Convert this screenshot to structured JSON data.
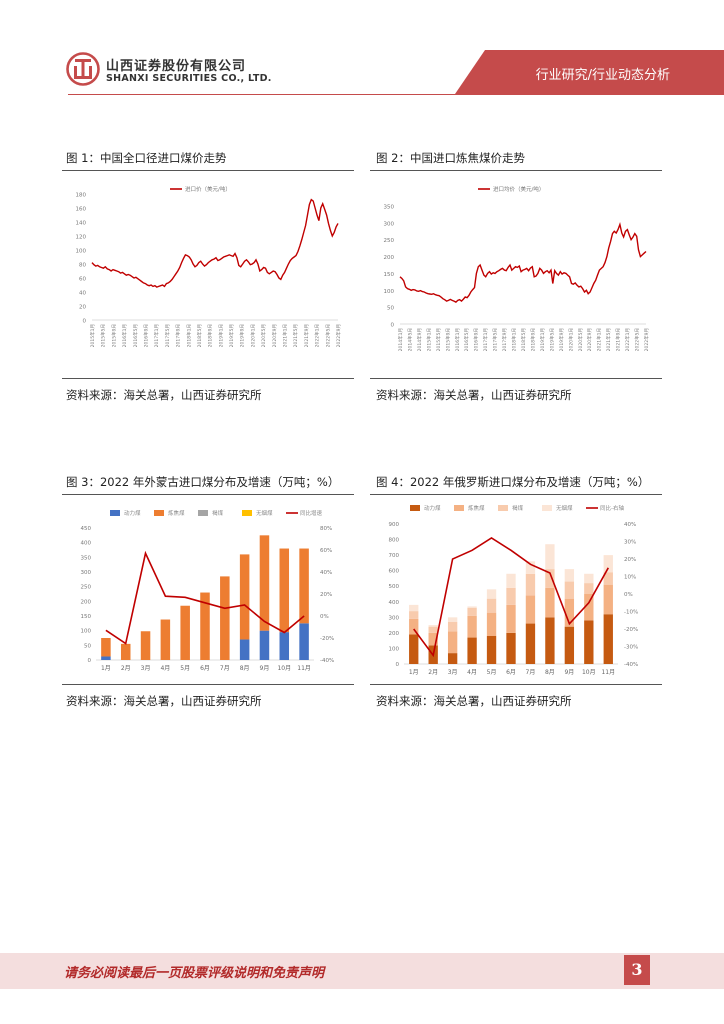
{
  "header": {
    "company_cn": "山西证券股份有限公司",
    "company_en": "SHANXI SECURITIES CO., LTD.",
    "section": "行业研究/行业动态分析",
    "brand_color": "#c54b4b"
  },
  "figures": [
    {
      "title": "图 1：中国全口径进口煤价走势",
      "source": "资料来源：海关总署，山西证券研究所"
    },
    {
      "title": "图 2：中国进口炼焦煤价走势",
      "source": "资料来源：海关总署，山西证券研究所"
    },
    {
      "title": "图 3：2022 年外蒙古进口煤分布及增速（万吨；%）",
      "source": "资料来源：海关总署，山西证券研究所"
    },
    {
      "title": "图 4：2022 年俄罗斯进口煤分布及增速（万吨；%）",
      "source": "资料来源：海关总署，山西证券研究所"
    }
  ],
  "chart_data": [
    {
      "type": "line",
      "x_start": "2015年1月",
      "x_end": "2022年9月",
      "x_ticks": [
        "2015年1月",
        "2015年5月",
        "2015年9月",
        "2016年1月",
        "2016年5月",
        "2016年9月",
        "2017年1月",
        "2017年5月",
        "2017年9月",
        "2018年1月",
        "2018年5月",
        "2018年9月",
        "2019年1月",
        "2019年5月",
        "2019年9月",
        "2020年1月",
        "2020年5月",
        "2020年9月",
        "2021年1月",
        "2021年5月",
        "2021年9月",
        "2022年1月",
        "2022年5月",
        "2022年9月"
      ],
      "series": [
        {
          "name": "进口价（美元/吨）",
          "color": "#c00000",
          "values": [
            82,
            79,
            77,
            78,
            76,
            75,
            74,
            76,
            73,
            72,
            70,
            72,
            71,
            70,
            69,
            67,
            68,
            66,
            64,
            65,
            64,
            62,
            60,
            61,
            59,
            57,
            55,
            53,
            52,
            50,
            49,
            50,
            48,
            49,
            47,
            48,
            49,
            50,
            48,
            52,
            53,
            55,
            58,
            62,
            66,
            70,
            75,
            82,
            88,
            93,
            92,
            90,
            86,
            80,
            76,
            78,
            82,
            84,
            80,
            77,
            79,
            82,
            84,
            86,
            87,
            89,
            85,
            86,
            88,
            90,
            91,
            92,
            93,
            92,
            91,
            95,
            89,
            78,
            76,
            80,
            84,
            86,
            83,
            79,
            80,
            82,
            86,
            80,
            70,
            72,
            75,
            74,
            68,
            66,
            68,
            70,
            69,
            65,
            60,
            58,
            64,
            68,
            74,
            80,
            85,
            88,
            90,
            92,
            98,
            106,
            115,
            125,
            135,
            150,
            165,
            172,
            170,
            160,
            150,
            142,
            160,
            166,
            158,
            150,
            138,
            128,
            120,
            125,
            133,
            138
          ]
        }
      ],
      "ylim": [
        0,
        180
      ],
      "yticks": [
        0,
        20,
        40,
        60,
        80,
        100,
        120,
        140,
        160,
        180
      ]
    },
    {
      "type": "line",
      "x_start": "2014年1月",
      "x_end": "2022年9月",
      "x_ticks": [
        "2014年1月",
        "2014年5月",
        "2014年9月",
        "2015年1月",
        "2015年5月",
        "2015年9月",
        "2016年1月",
        "2016年5月",
        "2016年9月",
        "2017年1月",
        "2017年5月",
        "2017年9月",
        "2018年1月",
        "2018年5月",
        "2018年9月",
        "2019年1月",
        "2019年5月",
        "2019年9月",
        "2020年1月",
        "2020年5月",
        "2020年9月",
        "2021年1月",
        "2021年5月",
        "2021年9月",
        "2022年1月",
        "2022年5月",
        "2022年9月"
      ],
      "series": [
        {
          "name": "进口均价（美元/吨）",
          "color": "#c00000",
          "values": [
            140,
            135,
            128,
            110,
            105,
            103,
            100,
            102,
            101,
            98,
            97,
            99,
            96,
            95,
            92,
            90,
            89,
            88,
            90,
            87,
            85,
            84,
            80,
            75,
            72,
            68,
            70,
            73,
            70,
            68,
            65,
            70,
            72,
            68,
            74,
            80,
            78,
            85,
            95,
            102,
            108,
            150,
            170,
            175,
            160,
            145,
            140,
            150,
            155,
            148,
            152,
            150,
            155,
            158,
            162,
            165,
            160,
            158,
            168,
            175,
            160,
            165,
            170,
            168,
            172,
            155,
            160,
            162,
            165,
            158,
            166,
            170,
            140,
            142,
            150,
            165,
            160,
            150,
            155,
            158,
            152,
            160,
            120,
            158,
            150,
            145,
            155,
            148,
            152,
            150,
            145,
            140,
            120,
            118,
            122,
            115,
            110,
            112,
            105,
            95,
            100,
            90,
            95,
            108,
            120,
            130,
            145,
            160,
            165,
            170,
            182,
            200,
            225,
            245,
            268,
            275,
            270,
            280,
            295,
            270,
            258,
            275,
            280,
            265,
            250,
            258,
            268,
            260,
            220,
            200,
            205,
            210,
            215
          ]
        }
      ],
      "ylim": [
        0,
        350
      ],
      "yticks": [
        0,
        50,
        100,
        150,
        200,
        250,
        300,
        350
      ]
    },
    {
      "type": "bar",
      "stacked": true,
      "categories": [
        "1月",
        "2月",
        "3月",
        "4月",
        "5月",
        "6月",
        "7月",
        "8月",
        "9月",
        "10月",
        "11月"
      ],
      "series": [
        {
          "name": "动力煤",
          "color": "#4472c4",
          "values": [
            12,
            0,
            0,
            0,
            0,
            0,
            0,
            70,
            100,
            95,
            125
          ]
        },
        {
          "name": "炼焦煤",
          "color": "#ed7d31",
          "values": [
            63,
            55,
            98,
            138,
            185,
            230,
            285,
            290,
            325,
            285,
            255
          ]
        },
        {
          "name": "褐煤",
          "color": "#a5a5a5",
          "values": [
            0,
            0,
            0,
            0,
            0,
            0,
            0,
            0,
            0,
            0,
            0
          ]
        },
        {
          "name": "无烟煤",
          "color": "#ffc000",
          "values": [
            0,
            0,
            0,
            0,
            0,
            0,
            0,
            0,
            0,
            0,
            0
          ]
        },
        {
          "name": "同比增速",
          "type": "line",
          "axis": "right",
          "color": "#c00000",
          "values": [
            -13,
            -25,
            57,
            18,
            17,
            12,
            7,
            10,
            -5,
            -15,
            0
          ]
        }
      ],
      "ylim": [
        0,
        450
      ],
      "yticks": [
        0,
        50,
        100,
        150,
        200,
        250,
        300,
        350,
        400,
        450
      ],
      "y2lim": [
        -40,
        80
      ],
      "y2ticks": [
        "80%",
        "60%",
        "40%",
        "20%",
        "0%",
        "-20%",
        "-40%"
      ]
    },
    {
      "type": "bar",
      "stacked": true,
      "categories": [
        "1月",
        "2月",
        "3月",
        "4月",
        "5月",
        "6月",
        "7月",
        "8月",
        "9月",
        "10月",
        "11月"
      ],
      "series": [
        {
          "name": "动力煤",
          "color": "#c55a11",
          "values": [
            190,
            120,
            70,
            170,
            180,
            200,
            260,
            300,
            240,
            280,
            320
          ]
        },
        {
          "name": "炼焦煤",
          "color": "#f4b183",
          "values": [
            100,
            80,
            140,
            140,
            150,
            180,
            180,
            190,
            180,
            170,
            190
          ]
        },
        {
          "name": "褐煤",
          "color": "#f8cbad",
          "values": [
            50,
            40,
            60,
            50,
            90,
            110,
            140,
            120,
            110,
            70,
            80
          ]
        },
        {
          "name": "无烟煤",
          "color": "#fbe5d6",
          "values": [
            40,
            10,
            30,
            10,
            60,
            90,
            80,
            160,
            80,
            60,
            110
          ]
        },
        {
          "name": "同比-右轴",
          "type": "line",
          "axis": "right",
          "color": "#c00000",
          "values": [
            -20,
            -35,
            20,
            25,
            32,
            25,
            17,
            12,
            -17,
            -5,
            15
          ]
        }
      ],
      "ylim": [
        0,
        900
      ],
      "yticks": [
        0,
        100,
        200,
        300,
        400,
        500,
        600,
        700,
        800,
        900
      ],
      "y2lim": [
        -40,
        40
      ],
      "y2ticks": [
        "40%",
        "30%",
        "20%",
        "10%",
        "0%",
        "-10%",
        "-20%",
        "-30%",
        "-40%"
      ]
    }
  ],
  "footer": {
    "disclaimer": "请务必阅读最后一页股票评级说明和免责声明",
    "page": "3"
  }
}
